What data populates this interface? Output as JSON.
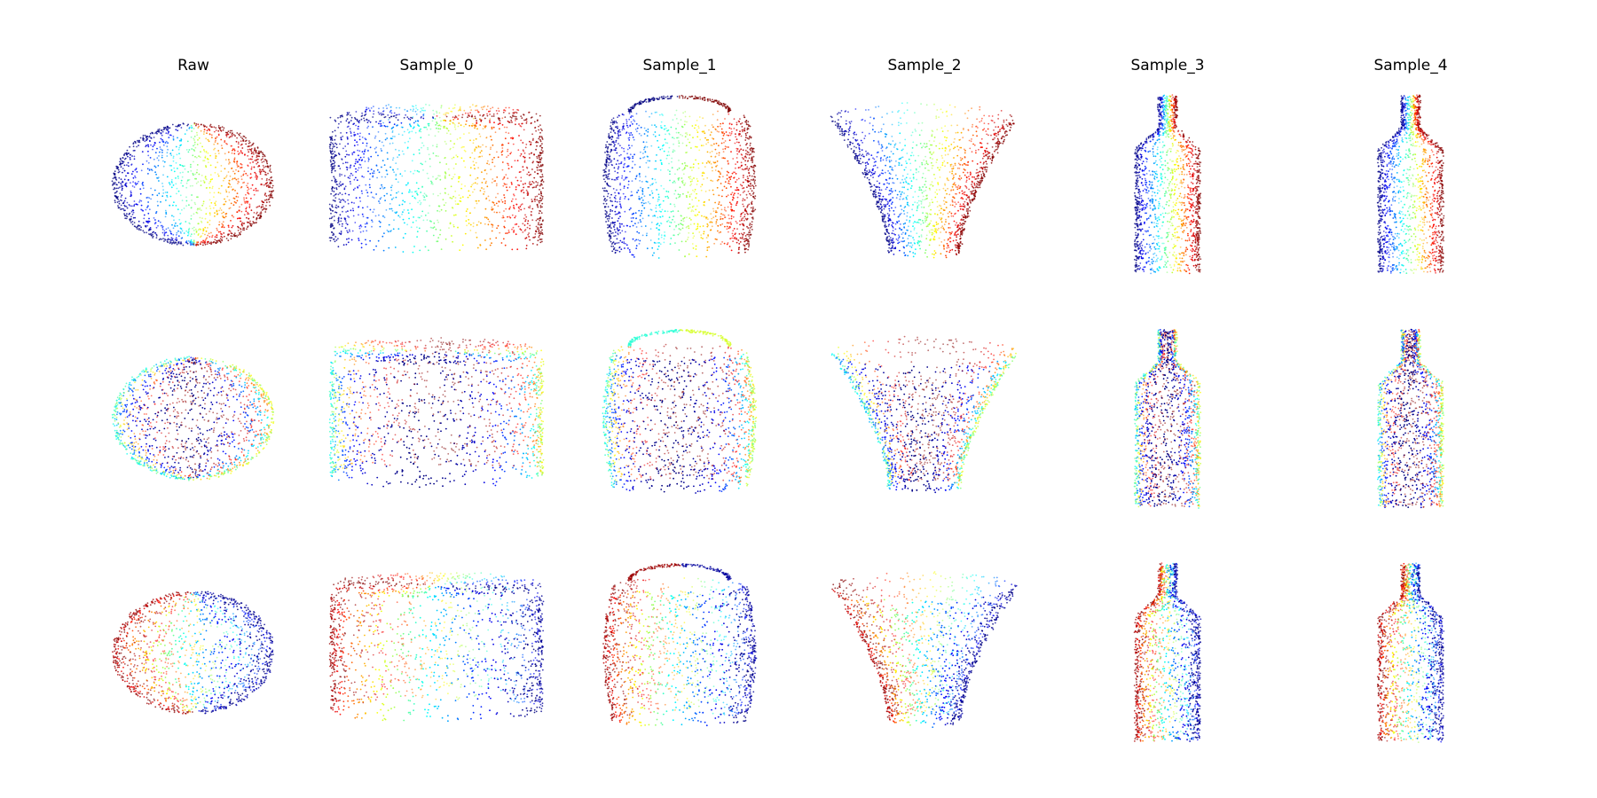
{
  "figure": {
    "columns": [
      "Raw",
      "Sample_0",
      "Sample_1",
      "Sample_2",
      "Sample_3",
      "Sample_4"
    ],
    "rows": 3,
    "colormap": [
      "#00007f",
      "#0000ff",
      "#007fff",
      "#00ffff",
      "#7fff7f",
      "#ffff00",
      "#ff7f00",
      "#ff0000",
      "#7f0000"
    ],
    "shapes": [
      "sphere",
      "squat-cylinder",
      "jar-with-handle",
      "flared-bowl",
      "bottle",
      "bottle"
    ]
  }
}
